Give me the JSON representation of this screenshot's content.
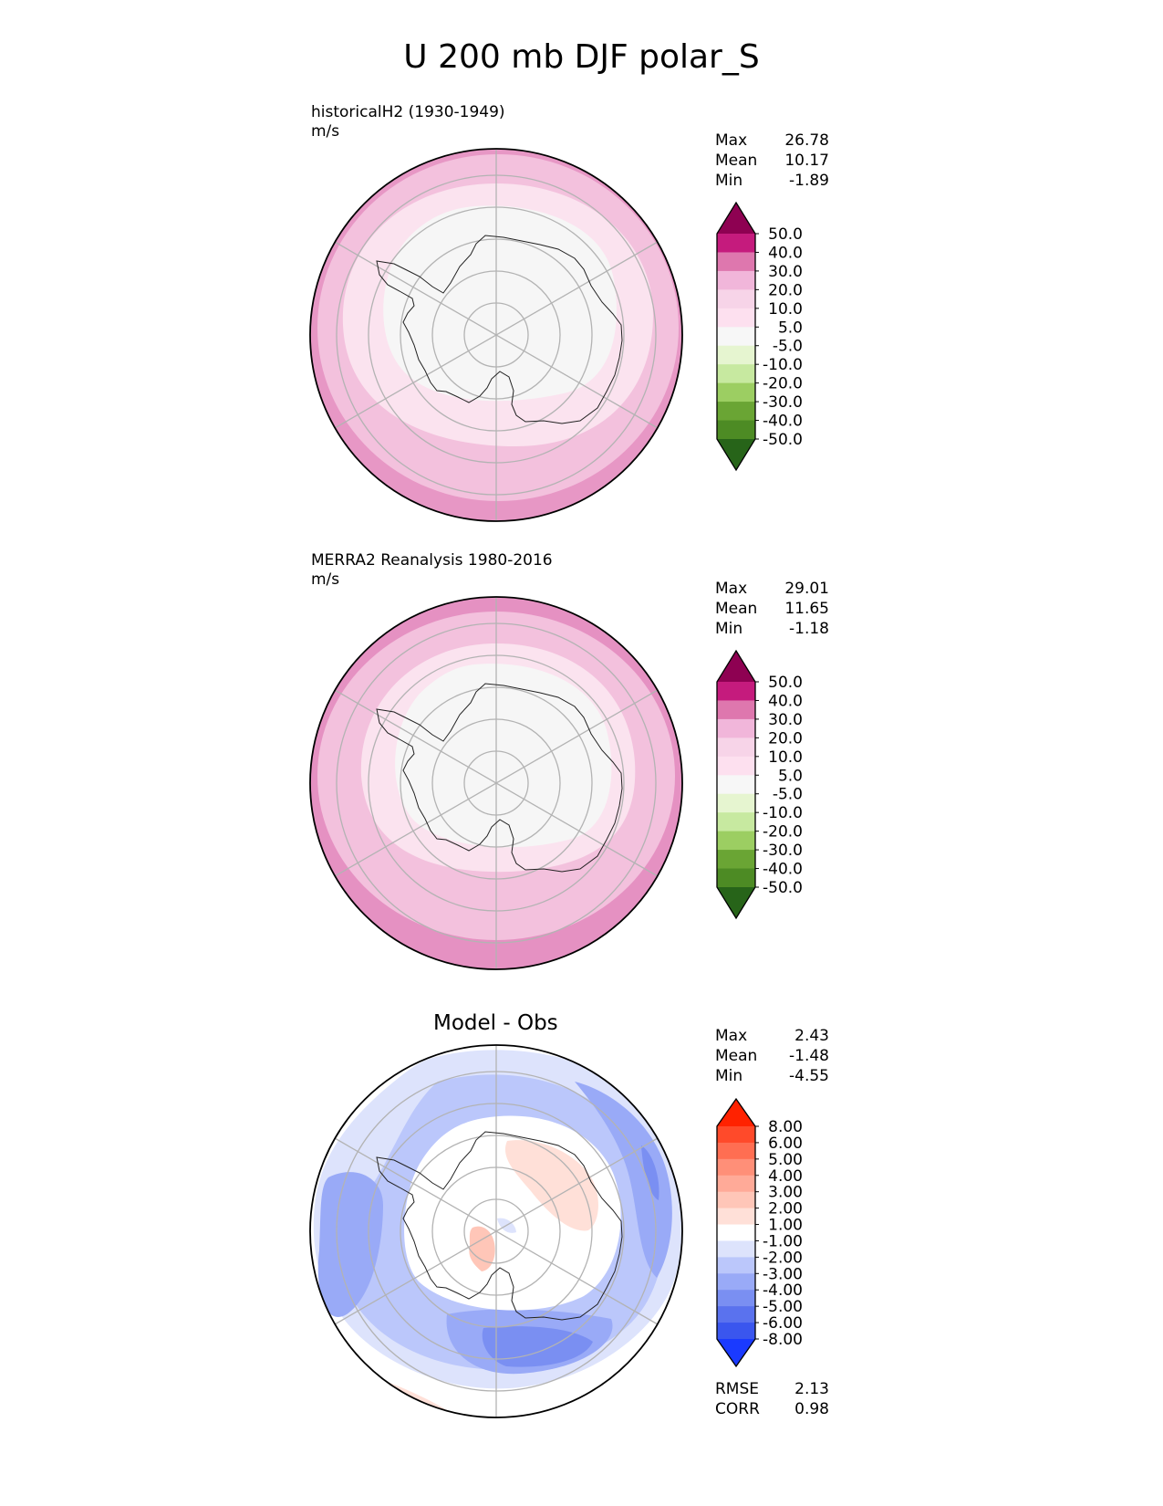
{
  "title": "U 200 mb DJF polar_S",
  "panels": [
    {
      "id": "test",
      "title_line1": "historicalH2 (1930-1949)",
      "title_line2": "m/s",
      "stats": [
        {
          "label": "Max",
          "value": "26.78"
        },
        {
          "label": "Mean",
          "value": "10.17"
        },
        {
          "label": "Min",
          "value": "-1.89"
        }
      ]
    },
    {
      "id": "ref",
      "title_line1": "MERRA2 Reanalysis 1980-2016",
      "title_line2": "m/s",
      "stats": [
        {
          "label": "Max",
          "value": "29.01"
        },
        {
          "label": "Mean",
          "value": "11.65"
        },
        {
          "label": "Min",
          "value": "-1.18"
        }
      ]
    },
    {
      "id": "diff",
      "title": "Model - Obs",
      "stats": [
        {
          "label": "Max",
          "value": "2.43"
        },
        {
          "label": "Mean",
          "value": "-1.48"
        },
        {
          "label": "Min",
          "value": "-4.55"
        }
      ],
      "metrics": [
        {
          "label": "RMSE",
          "value": "2.13"
        },
        {
          "label": "CORR",
          "value": "0.98"
        }
      ]
    }
  ],
  "chart_data": [
    {
      "type": "heatmap",
      "projection": "south polar stereographic",
      "title": "historicalH2 (1930-1949)",
      "units": "m/s",
      "colorbar": {
        "levels": [
          "50.0",
          "40.0",
          "30.0",
          "20.0",
          "10.0",
          "5.0",
          "-5.0",
          "-10.0",
          "-20.0",
          "-30.0",
          "-40.0",
          "-50.0"
        ],
        "colors": [
          "#8e0152",
          "#c51b7d",
          "#de77ae",
          "#f1b6da",
          "#f7d4e8",
          "#fde0ef",
          "#f7f7f7",
          "#e6f5d0",
          "#c7e9a0",
          "#9cce62",
          "#6aa534",
          "#4d8b24",
          "#276419"
        ]
      },
      "rings_u_ms": [
        20,
        15,
        10,
        5,
        0
      ],
      "coastline": "Antarctica"
    },
    {
      "type": "heatmap",
      "projection": "south polar stereographic",
      "title": "MERRA2 Reanalysis 1980-2016",
      "units": "m/s",
      "colorbar": {
        "levels": [
          "50.0",
          "40.0",
          "30.0",
          "20.0",
          "10.0",
          "5.0",
          "-5.0",
          "-10.0",
          "-20.0",
          "-30.0",
          "-40.0",
          "-50.0"
        ],
        "colors": [
          "#8e0152",
          "#c51b7d",
          "#de77ae",
          "#f1b6da",
          "#f7d4e8",
          "#fde0ef",
          "#f7f7f7",
          "#e6f5d0",
          "#c7e9a0",
          "#9cce62",
          "#6aa534",
          "#4d8b24",
          "#276419"
        ]
      },
      "rings_u_ms": [
        25,
        20,
        15,
        10,
        5,
        0
      ],
      "coastline": "Antarctica"
    },
    {
      "type": "heatmap",
      "projection": "south polar stereographic",
      "title": "Model - Obs",
      "colorbar": {
        "levels": [
          "8.00",
          "6.00",
          "5.00",
          "4.00",
          "3.00",
          "2.00",
          "1.00",
          "-1.00",
          "-2.00",
          "-3.00",
          "-4.00",
          "-5.00",
          "-6.00",
          "-8.00"
        ],
        "colors": [
          "#ff2200",
          "#ff4a2a",
          "#ff6e52",
          "#ff8f78",
          "#ffaa98",
          "#ffc6b8",
          "#ffe0d8",
          "#ffffff",
          "#dde3fc",
          "#bbc7fb",
          "#99aaf7",
          "#7a8ff2",
          "#5a72ee",
          "#3a56ee",
          "#1a3aff"
        ]
      },
      "coastline": "Antarctica"
    }
  ]
}
